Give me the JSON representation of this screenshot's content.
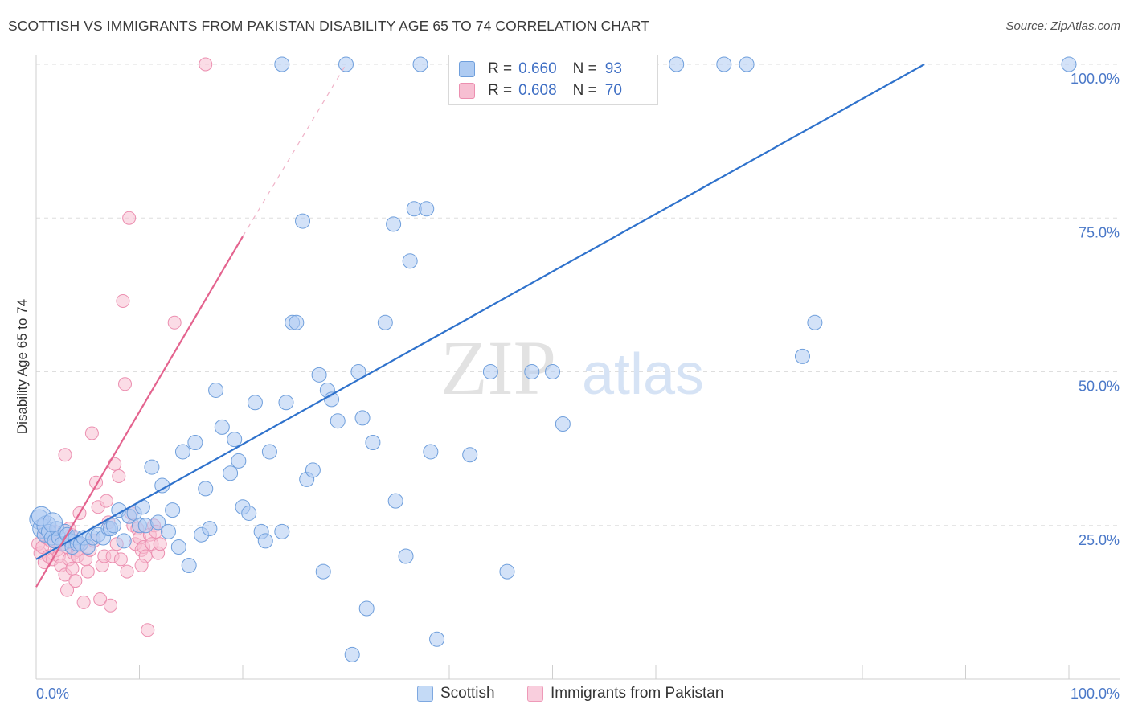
{
  "title": "SCOTTISH VS IMMIGRANTS FROM PAKISTAN DISABILITY AGE 65 TO 74 CORRELATION CHART",
  "source": "Source: ZipAtlas.com",
  "watermark": {
    "zip": "ZIP",
    "atlas": "atlas"
  },
  "colors": {
    "blue_fill": "#aecbf2",
    "blue_stroke": "#6f9fdc",
    "blue_line": "#2f72cc",
    "pink_fill": "#f7bfd2",
    "pink_stroke": "#ec8fb0",
    "pink_line": "#e4648f",
    "tick_label": "#4a78c8",
    "grid": "#dedede"
  },
  "stats": {
    "rows": [
      {
        "series": "Scottish",
        "r_label": "R =",
        "r_value": "0.660",
        "n_label": "N =",
        "n_value": "93"
      },
      {
        "series": "Immigrants from Pakistan",
        "r_label": "R =",
        "r_value": "0.608",
        "n_label": "N =",
        "n_value": "70"
      }
    ]
  },
  "legend": {
    "items": [
      "Scottish",
      "Immigrants from Pakistan"
    ]
  },
  "chart_data": {
    "type": "scatter",
    "title": "SCOTTISH VS IMMIGRANTS FROM PAKISTAN DISABILITY AGE 65 TO 74 CORRELATION CHART",
    "xlabel": "",
    "ylabel": "Disability Age 65 to 74",
    "xlim": [
      0,
      100
    ],
    "ylim": [
      0,
      100
    ],
    "x_tick_labels": [
      "0.0%",
      "100.0%"
    ],
    "y_tick_labels": [
      "25.0%",
      "50.0%",
      "75.0%",
      "100.0%"
    ],
    "y_ticks": [
      25,
      50,
      75,
      100
    ],
    "legend_position": "bottom-center",
    "series": [
      {
        "name": "Scottish",
        "r": 0.66,
        "n": 93,
        "trend": {
          "x": [
            0,
            86
          ],
          "y": [
            19.5,
            100
          ],
          "style": "solid"
        },
        "points": [
          {
            "x": 0.3,
            "y": 26.0
          },
          {
            "x": 0.6,
            "y": 24.5
          },
          {
            "x": 0.8,
            "y": 23.5
          },
          {
            "x": 1.0,
            "y": 25.0
          },
          {
            "x": 1.2,
            "y": 24.0
          },
          {
            "x": 1.5,
            "y": 23.0
          },
          {
            "x": 1.8,
            "y": 22.5
          },
          {
            "x": 2.0,
            "y": 24.5
          },
          {
            "x": 2.2,
            "y": 23.0
          },
          {
            "x": 2.5,
            "y": 22.0
          },
          {
            "x": 2.8,
            "y": 24.0
          },
          {
            "x": 3.0,
            "y": 23.5
          },
          {
            "x": 3.3,
            "y": 22.5
          },
          {
            "x": 3.5,
            "y": 21.5
          },
          {
            "x": 3.8,
            "y": 23.0
          },
          {
            "x": 4.0,
            "y": 22.0
          },
          {
            "x": 4.3,
            "y": 22.0
          },
          {
            "x": 4.6,
            "y": 23.0
          },
          {
            "x": 5.0,
            "y": 21.5
          },
          {
            "x": 5.5,
            "y": 23.0
          },
          {
            "x": 6.0,
            "y": 23.5
          },
          {
            "x": 6.5,
            "y": 23.0
          },
          {
            "x": 7.0,
            "y": 24.5
          },
          {
            "x": 7.2,
            "y": 24.5
          },
          {
            "x": 7.5,
            "y": 25.0
          },
          {
            "x": 8.0,
            "y": 27.5
          },
          {
            "x": 8.5,
            "y": 22.5
          },
          {
            "x": 9.0,
            "y": 26.5
          },
          {
            "x": 9.5,
            "y": 27.0
          },
          {
            "x": 10.0,
            "y": 25.0
          },
          {
            "x": 10.3,
            "y": 28.0
          },
          {
            "x": 10.6,
            "y": 25.0
          },
          {
            "x": 11.2,
            "y": 34.5
          },
          {
            "x": 11.8,
            "y": 25.5
          },
          {
            "x": 12.2,
            "y": 31.5
          },
          {
            "x": 12.8,
            "y": 24.0
          },
          {
            "x": 13.2,
            "y": 27.5
          },
          {
            "x": 13.8,
            "y": 21.5
          },
          {
            "x": 14.2,
            "y": 37.0
          },
          {
            "x": 14.8,
            "y": 18.5
          },
          {
            "x": 15.4,
            "y": 38.5
          },
          {
            "x": 16.0,
            "y": 23.5
          },
          {
            "x": 16.4,
            "y": 31.0
          },
          {
            "x": 16.8,
            "y": 24.5
          },
          {
            "x": 17.4,
            "y": 47.0
          },
          {
            "x": 18.0,
            "y": 41.0
          },
          {
            "x": 18.8,
            "y": 33.5
          },
          {
            "x": 19.2,
            "y": 39.0
          },
          {
            "x": 19.6,
            "y": 35.5
          },
          {
            "x": 20.0,
            "y": 28.0
          },
          {
            "x": 20.6,
            "y": 27.0
          },
          {
            "x": 21.2,
            "y": 45.0
          },
          {
            "x": 21.8,
            "y": 24.0
          },
          {
            "x": 22.2,
            "y": 22.5
          },
          {
            "x": 22.6,
            "y": 37.0
          },
          {
            "x": 23.8,
            "y": 24.0
          },
          {
            "x": 24.2,
            "y": 45.0
          },
          {
            "x": 24.8,
            "y": 58.0
          },
          {
            "x": 25.2,
            "y": 58.0
          },
          {
            "x": 25.8,
            "y": 74.5
          },
          {
            "x": 26.2,
            "y": 32.5
          },
          {
            "x": 26.8,
            "y": 34.0
          },
          {
            "x": 27.4,
            "y": 49.5
          },
          {
            "x": 27.8,
            "y": 17.5
          },
          {
            "x": 28.2,
            "y": 47.0
          },
          {
            "x": 28.6,
            "y": 45.5
          },
          {
            "x": 29.2,
            "y": 42.0
          },
          {
            "x": 30.0,
            "y": 100
          },
          {
            "x": 30.6,
            "y": 4.0
          },
          {
            "x": 31.2,
            "y": 50.0
          },
          {
            "x": 31.6,
            "y": 42.5
          },
          {
            "x": 32.0,
            "y": 11.5
          },
          {
            "x": 32.6,
            "y": 38.5
          },
          {
            "x": 33.8,
            "y": 58.0
          },
          {
            "x": 34.6,
            "y": 74.0
          },
          {
            "x": 34.8,
            "y": 29.0
          },
          {
            "x": 35.8,
            "y": 20.0
          },
          {
            "x": 36.2,
            "y": 68.0
          },
          {
            "x": 36.6,
            "y": 76.5
          },
          {
            "x": 37.2,
            "y": 100
          },
          {
            "x": 37.8,
            "y": 76.5
          },
          {
            "x": 38.2,
            "y": 37.0
          },
          {
            "x": 38.8,
            "y": 6.5
          },
          {
            "x": 42.0,
            "y": 36.5
          },
          {
            "x": 44.0,
            "y": 50.0
          },
          {
            "x": 45.6,
            "y": 17.5
          },
          {
            "x": 48.0,
            "y": 50.0
          },
          {
            "x": 50.0,
            "y": 50.0
          },
          {
            "x": 51.0,
            "y": 41.5
          },
          {
            "x": 62.0,
            "y": 100
          },
          {
            "x": 66.6,
            "y": 100
          },
          {
            "x": 68.8,
            "y": 100
          },
          {
            "x": 74.2,
            "y": 52.5
          },
          {
            "x": 75.4,
            "y": 58.0
          },
          {
            "x": 100.0,
            "y": 100
          },
          {
            "x": 23.8,
            "y": 100
          },
          {
            "x": 0.5,
            "y": 26.5
          },
          {
            "x": 1.6,
            "y": 25.5
          }
        ]
      },
      {
        "name": "Immigrants from Pakistan",
        "r": 0.608,
        "n": 70,
        "trend": {
          "x": [
            0,
            20
          ],
          "y": [
            15,
            72
          ],
          "style": "solid",
          "extension": {
            "x": [
              20,
              30
            ],
            "y": [
              72,
              100
            ],
            "style": "dashed"
          }
        },
        "points": [
          {
            "x": 0.2,
            "y": 22.0
          },
          {
            "x": 0.4,
            "y": 20.5
          },
          {
            "x": 0.6,
            "y": 21.5
          },
          {
            "x": 0.8,
            "y": 19.0
          },
          {
            "x": 1.0,
            "y": 23.0
          },
          {
            "x": 1.2,
            "y": 20.0
          },
          {
            "x": 1.4,
            "y": 22.5
          },
          {
            "x": 1.6,
            "y": 19.5
          },
          {
            "x": 1.8,
            "y": 24.0
          },
          {
            "x": 2.0,
            "y": 21.0
          },
          {
            "x": 2.2,
            "y": 20.0
          },
          {
            "x": 2.4,
            "y": 18.5
          },
          {
            "x": 2.6,
            "y": 22.0
          },
          {
            "x": 2.8,
            "y": 17.0
          },
          {
            "x": 3.0,
            "y": 21.5
          },
          {
            "x": 3.2,
            "y": 19.5
          },
          {
            "x": 3.4,
            "y": 23.5
          },
          {
            "x": 3.6,
            "y": 20.5
          },
          {
            "x": 3.8,
            "y": 22.5
          },
          {
            "x": 4.0,
            "y": 21.0
          },
          {
            "x": 2.8,
            "y": 36.5
          },
          {
            "x": 3.0,
            "y": 14.5
          },
          {
            "x": 3.2,
            "y": 24.5
          },
          {
            "x": 3.5,
            "y": 18.0
          },
          {
            "x": 3.8,
            "y": 16.0
          },
          {
            "x": 4.0,
            "y": 20.0
          },
          {
            "x": 4.2,
            "y": 27.0
          },
          {
            "x": 4.4,
            "y": 22.0
          },
          {
            "x": 4.6,
            "y": 12.5
          },
          {
            "x": 4.8,
            "y": 19.5
          },
          {
            "x": 5.0,
            "y": 17.5
          },
          {
            "x": 5.2,
            "y": 21.0
          },
          {
            "x": 5.4,
            "y": 40.0
          },
          {
            "x": 5.6,
            "y": 22.5
          },
          {
            "x": 5.8,
            "y": 32.0
          },
          {
            "x": 6.0,
            "y": 28.0
          },
          {
            "x": 6.2,
            "y": 13.0
          },
          {
            "x": 6.4,
            "y": 18.5
          },
          {
            "x": 6.6,
            "y": 20.0
          },
          {
            "x": 6.8,
            "y": 29.0
          },
          {
            "x": 7.0,
            "y": 25.5
          },
          {
            "x": 7.2,
            "y": 12.0
          },
          {
            "x": 7.4,
            "y": 20.0
          },
          {
            "x": 7.6,
            "y": 35.0
          },
          {
            "x": 7.8,
            "y": 22.0
          },
          {
            "x": 8.0,
            "y": 33.0
          },
          {
            "x": 8.2,
            "y": 19.5
          },
          {
            "x": 8.4,
            "y": 61.5
          },
          {
            "x": 8.6,
            "y": 48.0
          },
          {
            "x": 8.8,
            "y": 17.5
          },
          {
            "x": 9.0,
            "y": 75.0
          },
          {
            "x": 9.2,
            "y": 27.0
          },
          {
            "x": 9.4,
            "y": 25.0
          },
          {
            "x": 9.6,
            "y": 22.0
          },
          {
            "x": 9.8,
            "y": 24.5
          },
          {
            "x": 10.0,
            "y": 23.0
          },
          {
            "x": 10.2,
            "y": 21.0
          },
          {
            "x": 10.4,
            "y": 21.5
          },
          {
            "x": 10.6,
            "y": 20.0
          },
          {
            "x": 10.8,
            "y": 8.0
          },
          {
            "x": 11.0,
            "y": 23.5
          },
          {
            "x": 11.2,
            "y": 22.0
          },
          {
            "x": 11.4,
            "y": 25.0
          },
          {
            "x": 11.6,
            "y": 24.0
          },
          {
            "x": 11.8,
            "y": 20.5
          },
          {
            "x": 12.0,
            "y": 22.0
          },
          {
            "x": 10.2,
            "y": 18.5
          },
          {
            "x": 13.4,
            "y": 58.0
          },
          {
            "x": 16.4,
            "y": 100
          },
          {
            "x": 0.8,
            "y": 24.0
          }
        ]
      }
    ]
  }
}
